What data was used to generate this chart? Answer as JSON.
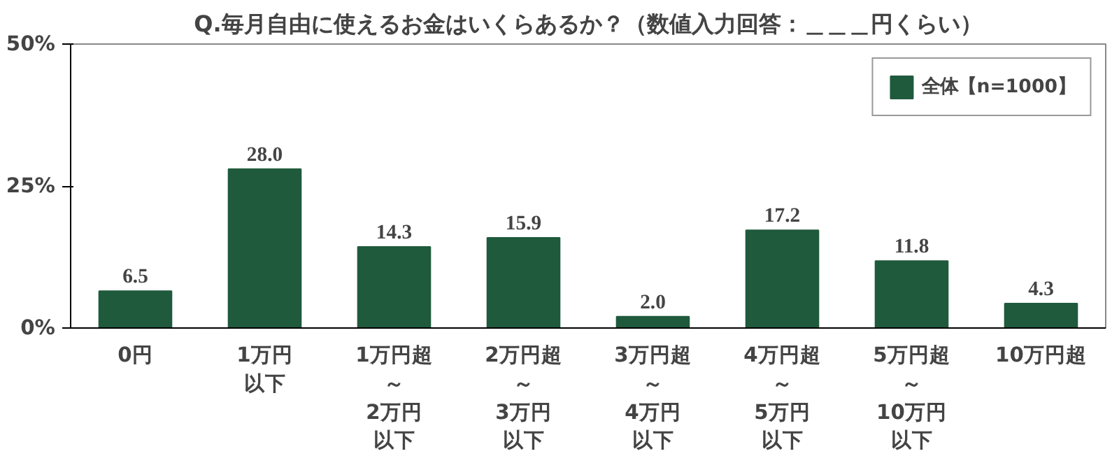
{
  "chart_data": {
    "type": "bar",
    "title": "Q.毎月自由に使えるお金はいくらあるか？（数値入力回答：＿＿＿円くらい）",
    "categories": [
      "0円",
      "1万円以下",
      "1万円超～2万円以下",
      "2万円超～3万円以下",
      "3万円超～4万円以下",
      "4万円超～5万円以下",
      "5万円超～10万円以下",
      "10万円超"
    ],
    "series": [
      {
        "name": "全体【n=1000】",
        "color": "#1f5a3d",
        "values": [
          6.5,
          28.0,
          14.3,
          15.9,
          2.0,
          17.2,
          11.8,
          4.3
        ],
        "value_labels": [
          "6.5",
          "28.0",
          "14.3",
          "15.9",
          "2.0",
          "17.2",
          "11.8",
          "4.3"
        ]
      }
    ],
    "ylim": [
      0,
      50
    ],
    "yticks": [
      {
        "value": 0,
        "label": "0%"
      },
      {
        "value": 25,
        "label": "25%"
      },
      {
        "value": 50,
        "label": "50%"
      }
    ],
    "data_labels": true,
    "legend": "top right",
    "grid": false
  }
}
